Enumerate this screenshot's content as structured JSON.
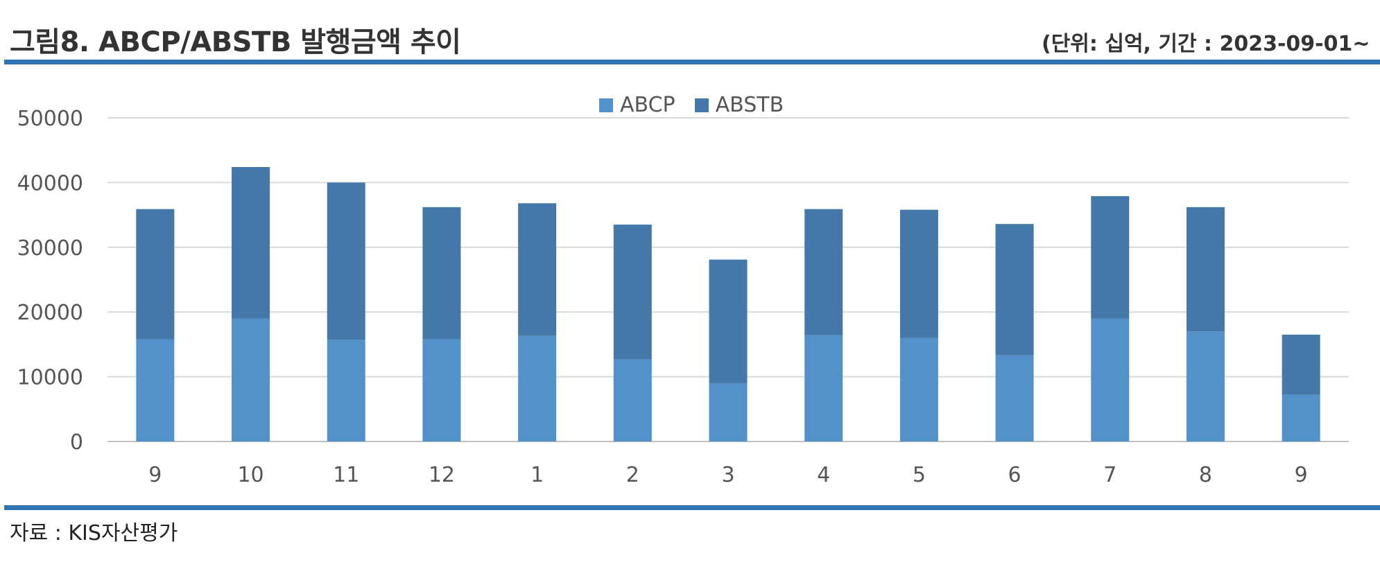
{
  "header": {
    "title": "그림8. ABCP/ABSTB 발행금액 추이",
    "unit_note": "(단위: 십억, 기간 : 2023-09-01~"
  },
  "footer": {
    "source": "자료 : KIS자산평가"
  },
  "colors": {
    "rule": "#2e74b5",
    "abcp": "#5291c9",
    "abstb": "#4478a8",
    "grid": "#d9d9d9"
  },
  "chart_data": {
    "type": "bar",
    "stacked": true,
    "categories": [
      "9",
      "10",
      "11",
      "12",
      "1",
      "2",
      "3",
      "4",
      "5",
      "6",
      "7",
      "8",
      "9"
    ],
    "series": [
      {
        "name": "ABCP",
        "values": [
          15800,
          19000,
          15700,
          15800,
          16300,
          12700,
          9000,
          16400,
          16000,
          13300,
          19000,
          17000,
          7200
        ]
      },
      {
        "name": "ABSTB",
        "values": [
          20100,
          23400,
          24300,
          20400,
          20500,
          20800,
          19100,
          19500,
          19800,
          20300,
          18900,
          19200,
          9300
        ]
      }
    ],
    "yticks": [
      "0",
      "10000",
      "20000",
      "30000",
      "40000",
      "50000"
    ],
    "ylim": [
      0,
      50000
    ],
    "grid": true,
    "legend_position": "top-center"
  }
}
